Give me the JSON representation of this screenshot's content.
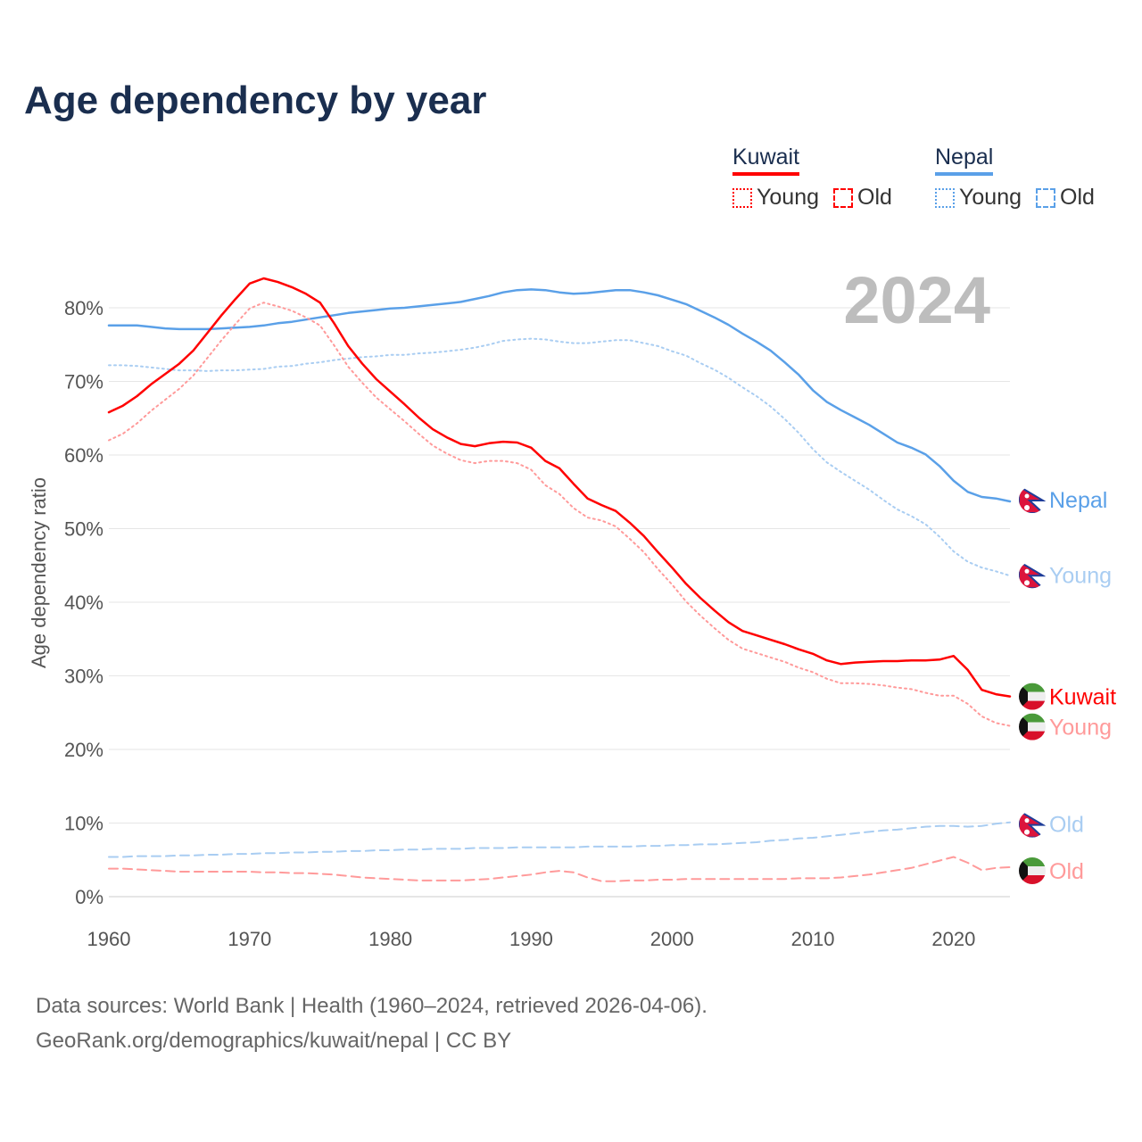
{
  "title": "Age dependency by year",
  "legend": {
    "groups": [
      {
        "name": "Kuwait",
        "color": "#ff0000",
        "items": [
          "Young",
          "Old"
        ]
      },
      {
        "name": "Nepal",
        "color": "#5aa0e8",
        "items": [
          "Young",
          "Old"
        ]
      }
    ]
  },
  "year_label": "2024",
  "footer": {
    "line1": "Data sources: World Bank | Health (1960–2024, retrieved 2026-04-06).",
    "line2": "GeoRank.org/demographics/kuwait/nepal | CC BY"
  },
  "chart_data": {
    "type": "line",
    "title": "Age dependency by year",
    "xlabel": "",
    "ylabel": "Age dependency ratio",
    "xlim": [
      1960,
      2024
    ],
    "ylim": [
      0,
      85
    ],
    "x_ticks": [
      "1960",
      "1970",
      "1980",
      "1990",
      "2000",
      "2010",
      "2020"
    ],
    "y_ticks": [
      "0%",
      "10%",
      "20%",
      "30%",
      "40%",
      "50%",
      "60%",
      "70%",
      "80%"
    ],
    "grid": true,
    "x_start": 1960,
    "series": [
      {
        "name": "Nepal",
        "label": "Nepal",
        "country": "Nepal",
        "kind": "total",
        "color": "#5aa0e8",
        "style": "solid",
        "values": [
          77.6,
          77.6,
          77.6,
          77.4,
          77.2,
          77.1,
          77.1,
          77.1,
          77.2,
          77.3,
          77.4,
          77.6,
          77.9,
          78.1,
          78.4,
          78.7,
          79.0,
          79.3,
          79.5,
          79.7,
          79.9,
          80.0,
          80.2,
          80.4,
          80.6,
          80.8,
          81.2,
          81.6,
          82.1,
          82.4,
          82.5,
          82.4,
          82.1,
          81.9,
          82.0,
          82.2,
          82.4,
          82.4,
          82.1,
          81.7,
          81.1,
          80.5,
          79.6,
          78.7,
          77.7,
          76.5,
          75.4,
          74.2,
          72.6,
          70.9,
          68.8,
          67.2,
          66.1,
          65.1,
          64.1,
          62.9,
          61.7,
          61.0,
          60.1,
          58.5,
          56.5,
          55.0,
          54.3,
          54.1,
          53.7
        ]
      },
      {
        "name": "Nepal Young",
        "label": "Young",
        "country": "Nepal",
        "kind": "young",
        "color": "#a9cdf2",
        "style": "dotted",
        "values": [
          72.2,
          72.2,
          72.1,
          71.9,
          71.7,
          71.5,
          71.5,
          71.4,
          71.5,
          71.5,
          71.6,
          71.7,
          72.0,
          72.1,
          72.4,
          72.6,
          72.9,
          73.1,
          73.3,
          73.4,
          73.6,
          73.6,
          73.8,
          73.9,
          74.1,
          74.3,
          74.6,
          75.0,
          75.5,
          75.7,
          75.8,
          75.7,
          75.4,
          75.2,
          75.2,
          75.4,
          75.6,
          75.6,
          75.2,
          74.8,
          74.1,
          73.5,
          72.5,
          71.6,
          70.5,
          69.2,
          68.0,
          66.6,
          64.9,
          63.0,
          60.8,
          59.0,
          57.7,
          56.5,
          55.3,
          53.9,
          52.6,
          51.7,
          50.6,
          48.9,
          46.9,
          45.5,
          44.7,
          44.2,
          43.6
        ]
      },
      {
        "name": "Kuwait",
        "label": "Kuwait",
        "country": "Kuwait",
        "kind": "total",
        "color": "#ff0000",
        "style": "solid",
        "values": [
          65.8,
          66.7,
          68.0,
          69.6,
          71.0,
          72.4,
          74.2,
          76.6,
          79.0,
          81.2,
          83.3,
          84.0,
          83.5,
          82.8,
          81.9,
          80.7,
          77.9,
          74.8,
          72.4,
          70.3,
          68.6,
          66.9,
          65.1,
          63.5,
          62.4,
          61.5,
          61.2,
          61.6,
          61.8,
          61.7,
          61.0,
          59.2,
          58.2,
          56.1,
          54.1,
          53.2,
          52.4,
          50.8,
          49.0,
          46.8,
          44.7,
          42.5,
          40.6,
          38.9,
          37.3,
          36.1,
          35.5,
          34.9,
          34.3,
          33.6,
          33.0,
          32.1,
          31.6,
          31.8,
          31.9,
          32.0,
          32.0,
          32.1,
          32.1,
          32.2,
          32.7,
          30.8,
          28.1,
          27.5,
          27.2
        ]
      },
      {
        "name": "Kuwait Young",
        "label": "Young",
        "country": "Kuwait",
        "kind": "young",
        "color": "#ff9a9a",
        "style": "dotted",
        "values": [
          62.0,
          62.9,
          64.3,
          66.0,
          67.5,
          69.0,
          70.8,
          73.2,
          75.6,
          77.8,
          79.9,
          80.7,
          80.2,
          79.6,
          78.7,
          77.6,
          74.9,
          72.0,
          69.8,
          67.8,
          66.2,
          64.6,
          62.9,
          61.3,
          60.2,
          59.3,
          58.9,
          59.2,
          59.2,
          58.9,
          58.0,
          55.9,
          54.7,
          52.8,
          51.5,
          51.1,
          50.3,
          48.6,
          46.8,
          44.5,
          42.4,
          40.1,
          38.2,
          36.5,
          34.9,
          33.7,
          33.1,
          32.5,
          31.9,
          31.1,
          30.5,
          29.6,
          29.0,
          29.0,
          28.9,
          28.7,
          28.4,
          28.2,
          27.7,
          27.3,
          27.3,
          26.2,
          24.5,
          23.6,
          23.2
        ]
      },
      {
        "name": "Nepal Old",
        "label": "Old",
        "country": "Nepal",
        "kind": "old",
        "color": "#a9cdf2",
        "style": "dashed",
        "values": [
          5.4,
          5.4,
          5.5,
          5.5,
          5.5,
          5.6,
          5.6,
          5.7,
          5.7,
          5.8,
          5.8,
          5.9,
          5.9,
          6.0,
          6.0,
          6.1,
          6.1,
          6.2,
          6.2,
          6.3,
          6.3,
          6.4,
          6.4,
          6.5,
          6.5,
          6.5,
          6.6,
          6.6,
          6.6,
          6.7,
          6.7,
          6.7,
          6.7,
          6.7,
          6.8,
          6.8,
          6.8,
          6.8,
          6.9,
          6.9,
          7.0,
          7.0,
          7.1,
          7.1,
          7.2,
          7.3,
          7.4,
          7.6,
          7.7,
          7.9,
          8.0,
          8.2,
          8.4,
          8.6,
          8.8,
          9.0,
          9.1,
          9.3,
          9.5,
          9.6,
          9.6,
          9.5,
          9.6,
          9.9,
          10.1
        ]
      },
      {
        "name": "Kuwait Old",
        "label": "Old",
        "country": "Kuwait",
        "kind": "old",
        "color": "#ff9a9a",
        "style": "dashed",
        "values": [
          3.8,
          3.8,
          3.7,
          3.6,
          3.5,
          3.4,
          3.4,
          3.4,
          3.4,
          3.4,
          3.4,
          3.3,
          3.3,
          3.2,
          3.2,
          3.1,
          3.0,
          2.8,
          2.6,
          2.5,
          2.4,
          2.3,
          2.2,
          2.2,
          2.2,
          2.2,
          2.3,
          2.4,
          2.6,
          2.8,
          3.0,
          3.3,
          3.5,
          3.3,
          2.6,
          2.1,
          2.1,
          2.2,
          2.2,
          2.3,
          2.3,
          2.4,
          2.4,
          2.4,
          2.4,
          2.4,
          2.4,
          2.4,
          2.4,
          2.5,
          2.5,
          2.5,
          2.6,
          2.8,
          3.0,
          3.3,
          3.6,
          3.9,
          4.4,
          4.9,
          5.4,
          4.6,
          3.6,
          3.9,
          4.0
        ]
      }
    ]
  }
}
